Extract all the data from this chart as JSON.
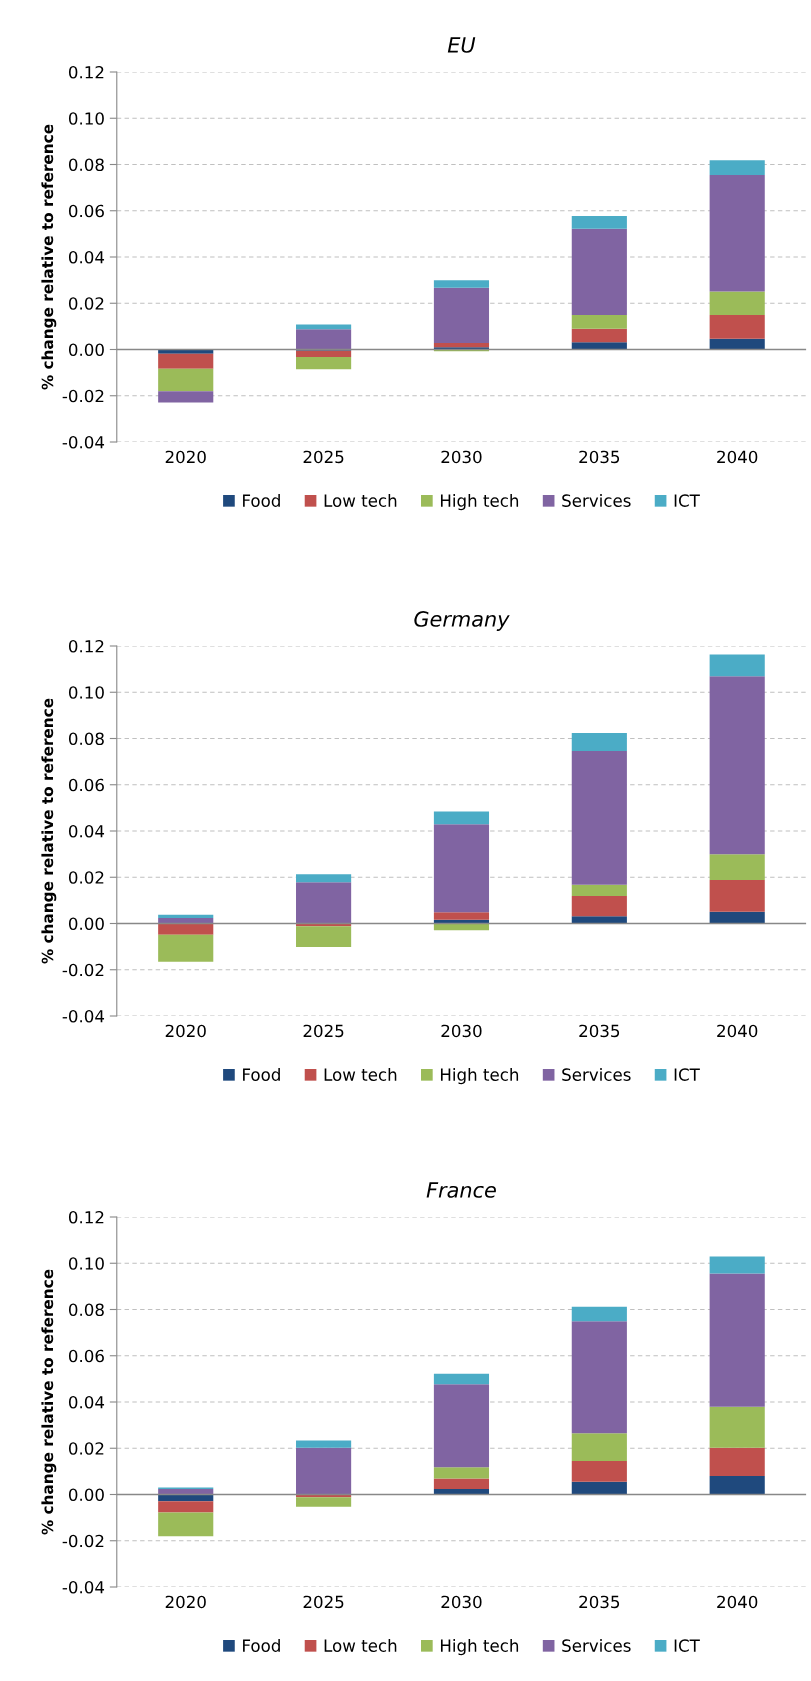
{
  "chart_data": [
    {
      "type": "bar",
      "title": "EU",
      "ylabel": "% change relative to reference",
      "categories": [
        "2020",
        "2025",
        "2030",
        "2035",
        "2040"
      ],
      "stacked": true,
      "ylim": [
        -0.04,
        0.12
      ],
      "yticks": [
        {
          "value": -0.04,
          "label": "-0.04"
        },
        {
          "value": -0.02,
          "label": "-0.02"
        },
        {
          "value": 0,
          "label": "0.00"
        },
        {
          "value": 0.02,
          "label": "0.02"
        },
        {
          "value": 0.04,
          "label": "0.04"
        },
        {
          "value": 0.06,
          "label": "0.06"
        },
        {
          "value": 0.08,
          "label": "0.08"
        },
        {
          "value": 0.1,
          "label": "0.10"
        },
        {
          "value": 0.12,
          "label": "0.12"
        }
      ],
      "grid": "y",
      "legend": "bottom",
      "series": [
        {
          "name": "Food",
          "color": "#1f497d",
          "values": [
            -0.0018,
            -0.0005,
            0.001,
            0.0031,
            0.0047
          ]
        },
        {
          "name": "Low tech",
          "color": "#c0504d",
          "values": [
            -0.0065,
            -0.0027,
            0.0018,
            0.0059,
            0.0102
          ]
        },
        {
          "name": "High tech",
          "color": "#9bbb59",
          "values": [
            -0.0097,
            -0.0053,
            -0.0008,
            0.0059,
            0.0102
          ]
        },
        {
          "name": "Services",
          "color": "#8064a2",
          "values": [
            -0.0049,
            0.0088,
            0.0239,
            0.0373,
            0.0504
          ]
        },
        {
          "name": "ICT",
          "color": "#4bacc6",
          "values": [
            0,
            0.002,
            0.0033,
            0.0055,
            0.0063
          ]
        }
      ]
    },
    {
      "type": "bar",
      "title": "Germany",
      "ylabel": "% change relative to reference",
      "categories": [
        "2020",
        "2025",
        "2030",
        "2035",
        "2040"
      ],
      "stacked": true,
      "ylim": [
        -0.04,
        0.12
      ],
      "yticks": [
        {
          "value": -0.04,
          "label": "-0.04"
        },
        {
          "value": -0.02,
          "label": "-0.02"
        },
        {
          "value": 0,
          "label": "0.00"
        },
        {
          "value": 0.02,
          "label": "0.02"
        },
        {
          "value": 0.04,
          "label": "0.04"
        },
        {
          "value": 0.06,
          "label": "0.06"
        },
        {
          "value": 0.08,
          "label": "0.08"
        },
        {
          "value": 0.1,
          "label": "0.10"
        },
        {
          "value": 0.12,
          "label": "0.12"
        }
      ],
      "grid": "y",
      "legend": "bottom",
      "series": [
        {
          "name": "Food",
          "color": "#1f497d",
          "values": [
            0,
            0,
            0.0016,
            0.0031,
            0.0051
          ]
        },
        {
          "name": "Low tech",
          "color": "#c0504d",
          "values": [
            -0.0049,
            -0.0012,
            0.0033,
            0.0088,
            0.0137
          ]
        },
        {
          "name": "High tech",
          "color": "#9bbb59",
          "values": [
            -0.0116,
            -0.009,
            -0.0029,
            0.0049,
            0.0112
          ]
        },
        {
          "name": "Services",
          "color": "#8064a2",
          "values": [
            0.0024,
            0.0178,
            0.038,
            0.0578,
            0.0769
          ]
        },
        {
          "name": "ICT",
          "color": "#4bacc6",
          "values": [
            0.0014,
            0.0035,
            0.0055,
            0.0078,
            0.0094
          ]
        }
      ]
    },
    {
      "type": "bar",
      "title": "France",
      "ylabel": "% change relative to reference",
      "categories": [
        "2020",
        "2025",
        "2030",
        "2035",
        "2040"
      ],
      "stacked": true,
      "ylim": [
        -0.04,
        0.12
      ],
      "yticks": [
        {
          "value": -0.04,
          "label": "-0.04"
        },
        {
          "value": -0.02,
          "label": "-0.02"
        },
        {
          "value": 0,
          "label": "0.00"
        },
        {
          "value": 0.02,
          "label": "0.02"
        },
        {
          "value": 0.04,
          "label": "0.04"
        },
        {
          "value": 0.06,
          "label": "0.06"
        },
        {
          "value": 0.08,
          "label": "0.08"
        },
        {
          "value": 0.1,
          "label": "0.10"
        },
        {
          "value": 0.12,
          "label": "0.12"
        }
      ],
      "grid": "y",
      "legend": "bottom",
      "series": [
        {
          "name": "Food",
          "color": "#1f497d",
          "values": [
            -0.0029,
            0,
            0.0024,
            0.0055,
            0.008
          ]
        },
        {
          "name": "Low tech",
          "color": "#c0504d",
          "values": [
            -0.0049,
            -0.0012,
            0.0045,
            0.009,
            0.0122
          ]
        },
        {
          "name": "High tech",
          "color": "#9bbb59",
          "values": [
            -0.0102,
            -0.0041,
            0.0049,
            0.012,
            0.0178
          ]
        },
        {
          "name": "Services",
          "color": "#8064a2",
          "values": [
            0.0024,
            0.0202,
            0.0359,
            0.0484,
            0.0576
          ]
        },
        {
          "name": "ICT",
          "color": "#4bacc6",
          "values": [
            0.0006,
            0.0031,
            0.0045,
            0.0063,
            0.0073
          ]
        }
      ]
    }
  ]
}
